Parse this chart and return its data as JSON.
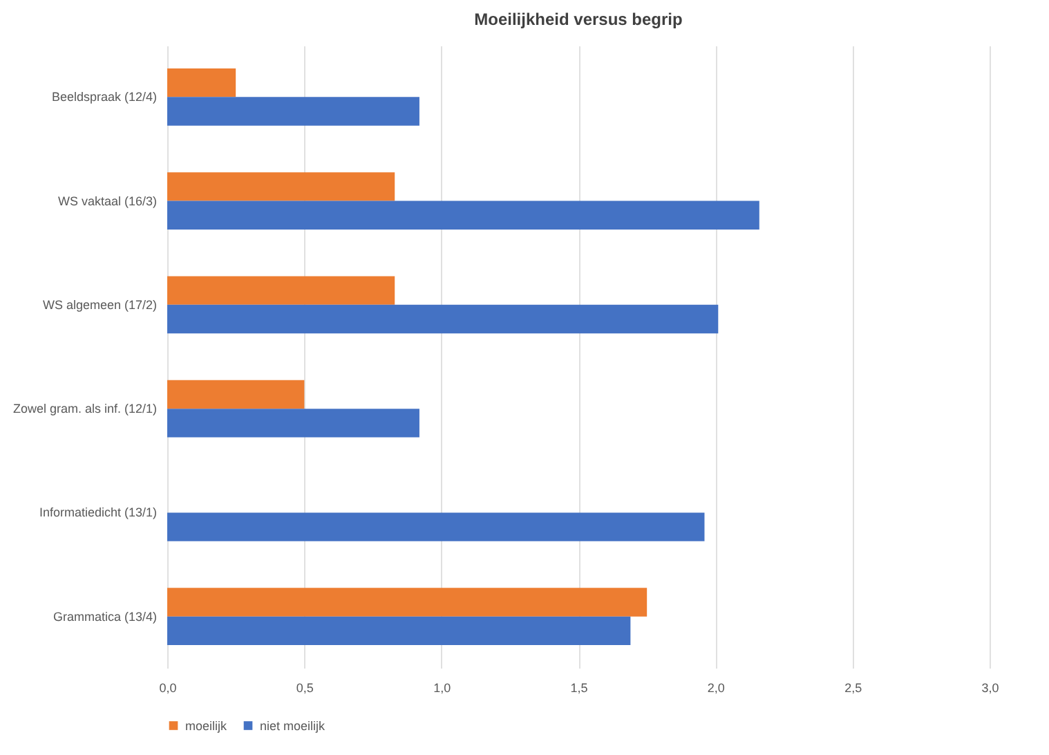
{
  "chart_data": {
    "type": "bar",
    "orientation": "horizontal",
    "title": "Moeilijkheid versus begrip",
    "categories": [
      "Beeldspraak (12/4)",
      "WS vaktaal (16/3)",
      "WS algemeen (17/2)",
      "Zowel gram. als inf. (12/1)",
      "Informatiedicht (13/1)",
      "Grammatica (13/4)"
    ],
    "series": [
      {
        "name": "moeilijk",
        "color": "#ed7d31",
        "values": [
          0.25,
          0.83,
          0.83,
          0.5,
          0,
          1.75
        ]
      },
      {
        "name": "niet moeilijk",
        "color": "#4472c4",
        "values": [
          0.92,
          2.16,
          2.01,
          0.92,
          1.96,
          1.69
        ]
      }
    ],
    "xlim": [
      0,
      3
    ],
    "xticks": [
      {
        "value": 0,
        "label": "0,0"
      },
      {
        "value": 0.5,
        "label": "0,5"
      },
      {
        "value": 1,
        "label": "1,0"
      },
      {
        "value": 1.5,
        "label": "1,5"
      },
      {
        "value": 2,
        "label": "2,0"
      },
      {
        "value": 2.5,
        "label": "2,5"
      },
      {
        "value": 3,
        "label": "3,0"
      }
    ],
    "grid": "x",
    "legend": "bottom"
  }
}
